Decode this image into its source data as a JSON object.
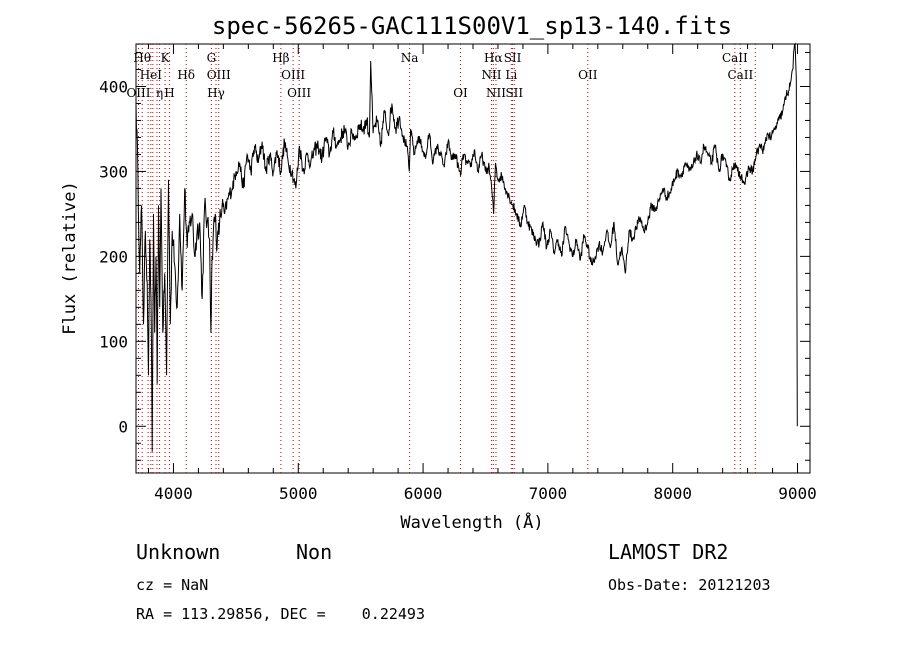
{
  "chart_data": {
    "type": "line",
    "title": "spec-56265-GAC111S00V1_sp13-140.fits",
    "xlabel": "Wavelength (Å)",
    "ylabel": "Flux (relative)",
    "xlim": [
      3700,
      9100
    ],
    "ylim": [
      -55,
      450
    ],
    "xticks": [
      4000,
      5000,
      6000,
      7000,
      8000,
      9000
    ],
    "yticks": [
      0,
      100,
      200,
      300,
      400
    ],
    "line_color": "#000000",
    "marker_color": "#cc0000",
    "series": [
      {
        "x": [
          3700,
          3715,
          3730,
          3745,
          3760,
          3775,
          3790,
          3800,
          3810,
          3820,
          3830,
          3840,
          3850,
          3860,
          3870,
          3880,
          3890,
          3900,
          3915,
          3930,
          3945,
          3960,
          3975,
          3990,
          4010,
          4030,
          4050,
          4070,
          4090,
          4110,
          4130,
          4150,
          4170,
          4190,
          4210,
          4230,
          4250,
          4270,
          4290,
          4300,
          4310,
          4320,
          4335,
          4350,
          4370,
          4390,
          4410,
          4440,
          4470,
          4500,
          4530,
          4560,
          4590,
          4620,
          4650,
          4680,
          4710,
          4740,
          4770,
          4800,
          4830,
          4860,
          4890,
          4920,
          4950,
          4980,
          5010,
          5040,
          5070,
          5100,
          5130,
          5160,
          5190,
          5220,
          5250,
          5280,
          5310,
          5340,
          5370,
          5400,
          5430,
          5460,
          5490,
          5520,
          5550,
          5570,
          5580,
          5600,
          5630,
          5660,
          5690,
          5720,
          5750,
          5780,
          5810,
          5840,
          5870,
          5890,
          5900,
          5930,
          5960,
          5990,
          6020,
          6050,
          6080,
          6110,
          6140,
          6170,
          6200,
          6230,
          6260,
          6290,
          6300,
          6320,
          6350,
          6380,
          6410,
          6440,
          6470,
          6500,
          6530,
          6550,
          6565,
          6580,
          6600,
          6630,
          6660,
          6690,
          6720,
          6750,
          6780,
          6810,
          6840,
          6870,
          6900,
          6930,
          6960,
          6990,
          7020,
          7050,
          7080,
          7110,
          7140,
          7170,
          7200,
          7230,
          7260,
          7290,
          7320,
          7350,
          7380,
          7410,
          7440,
          7470,
          7500,
          7530,
          7560,
          7590,
          7620,
          7650,
          7680,
          7710,
          7740,
          7770,
          7800,
          7830,
          7860,
          7890,
          7920,
          7950,
          7980,
          8010,
          8040,
          8070,
          8100,
          8130,
          8160,
          8190,
          8220,
          8250,
          8280,
          8310,
          8340,
          8370,
          8400,
          8430,
          8460,
          8490,
          8520,
          8550,
          8580,
          8610,
          8640,
          8670,
          8700,
          8730,
          8760,
          8790,
          8820,
          8850,
          8880,
          8910,
          8940,
          8960,
          8980,
          8990
        ],
        "y": [
          380,
          300,
          180,
          260,
          120,
          230,
          170,
          60,
          220,
          150,
          -30,
          250,
          110,
          200,
          50,
          260,
          140,
          280,
          110,
          180,
          60,
          290,
          120,
          230,
          190,
          140,
          250,
          160,
          280,
          210,
          240,
          250,
          200,
          230,
          240,
          150,
          260,
          240,
          220,
          110,
          200,
          230,
          250,
          210,
          240,
          260,
          250,
          270,
          280,
          300,
          310,
          280,
          320,
          300,
          330,
          310,
          335,
          300,
          320,
          300,
          325,
          300,
          335,
          310,
          300,
          280,
          330,
          300,
          320,
          310,
          325,
          330,
          315,
          340,
          320,
          345,
          330,
          340,
          350,
          330,
          345,
          340,
          355,
          350,
          360,
          340,
          430,
          345,
          360,
          330,
          370,
          345,
          380,
          350,
          365,
          340,
          330,
          300,
          350,
          320,
          340,
          330,
          315,
          345,
          310,
          330,
          320,
          305,
          335,
          315,
          320,
          300,
          295,
          320,
          310,
          305,
          325,
          300,
          320,
          300,
          305,
          280,
          250,
          310,
          290,
          295,
          280,
          270,
          260,
          250,
          235,
          260,
          240,
          230,
          220,
          215,
          240,
          210,
          230,
          205,
          220,
          200,
          235,
          215,
          200,
          220,
          195,
          225,
          210,
          190,
          200,
          215,
          205,
          230,
          210,
          240,
          190,
          210,
          180,
          230,
          220,
          235,
          245,
          230,
          240,
          260,
          255,
          265,
          280,
          270,
          275,
          290,
          300,
          295,
          310,
          300,
          305,
          320,
          310,
          330,
          320,
          310,
          330,
          300,
          320,
          305,
          290,
          310,
          300,
          295,
          285,
          305,
          300,
          320,
          330,
          325,
          345,
          340,
          350,
          360,
          370,
          390,
          400,
          420,
          450,
          410
        ]
      }
    ],
    "line_markers": [
      {
        "x": 3720,
        "label": "OIII",
        "row": 3
      },
      {
        "x": 3750,
        "label": "Hθ",
        "row": 1
      },
      {
        "x": 3797,
        "label": "",
        "row": 0
      },
      {
        "x": 3819,
        "label": "HeI",
        "row": 2
      },
      {
        "x": 3835,
        "label": "",
        "row": 0
      },
      {
        "x": 3868,
        "label": "",
        "row": 0
      },
      {
        "x": 3889,
        "label": "η",
        "row": 3
      },
      {
        "x": 3933,
        "label": "K",
        "row": 1
      },
      {
        "x": 3968,
        "label": "H",
        "row": 3
      },
      {
        "x": 4102,
        "label": "Hδ",
        "row": 2
      },
      {
        "x": 4304,
        "label": "G",
        "row": 1
      },
      {
        "x": 4341,
        "label": "Hγ",
        "row": 3
      },
      {
        "x": 4363,
        "label": "OIII",
        "row": 2
      },
      {
        "x": 4861,
        "label": "Hβ",
        "row": 1
      },
      {
        "x": 4959,
        "label": "OIII",
        "row": 2
      },
      {
        "x": 5007,
        "label": "OIII",
        "row": 3
      },
      {
        "x": 5892,
        "label": "Na",
        "row": 1
      },
      {
        "x": 6300,
        "label": "OI",
        "row": 3
      },
      {
        "x": 6548,
        "label": "NII",
        "row": 2
      },
      {
        "x": 6563,
        "label": "Hα",
        "row": 1
      },
      {
        "x": 6584,
        "label": "NII",
        "row": 3
      },
      {
        "x": 6707,
        "label": "Li",
        "row": 2
      },
      {
        "x": 6717,
        "label": "SII",
        "row": 1
      },
      {
        "x": 6731,
        "label": "SII",
        "row": 3
      },
      {
        "x": 7320,
        "label": "OII",
        "row": 2
      },
      {
        "x": 8498,
        "label": "CaII",
        "row": 1
      },
      {
        "x": 8542,
        "label": "CaII",
        "row": 2
      },
      {
        "x": 8662,
        "label": "",
        "row": 0
      }
    ]
  },
  "info": {
    "class_label": "Unknown",
    "subclass_label": "Non",
    "survey": "LAMOST DR2",
    "cz": "cz = NaN",
    "obs_date": "Obs-Date: 20121203",
    "radec": "RA = 113.29856, DEC =    0.22493"
  }
}
